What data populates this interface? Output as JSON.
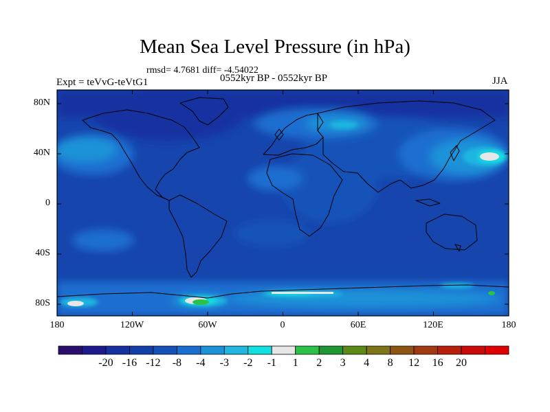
{
  "title": "Mean Sea Level Pressure (in hPa)",
  "stats_text": "rmsd= 4.7681 diff= -4.54022",
  "period_text": "0552kyr BP - 0552kyr BP",
  "experiment_text": "Expt = teVvG-teVtG1",
  "season_text": "JJA",
  "lat_labels": [
    "80N",
    "40N",
    "0",
    "40S",
    "80S"
  ],
  "lon_labels": [
    "180",
    "120W",
    "60W",
    "0",
    "60E",
    "120E",
    "180"
  ],
  "colorbar": {
    "labels": [
      "-20",
      "-16",
      "-12",
      "-8",
      "-4",
      "-3",
      "-2",
      "-1",
      "1",
      "2",
      "3",
      "4",
      "8",
      "12",
      "16",
      "20"
    ],
    "colors": [
      "#2b0f6e",
      "#1c1a8c",
      "#1631a0",
      "#123fa8",
      "#1552b8",
      "#1a6ed0",
      "#1c93d8",
      "#1fb6e0",
      "#12e0e0",
      "#e6e6e6",
      "#2cc24a",
      "#1e9632",
      "#5e8a18",
      "#7e7418",
      "#8e5414",
      "#a23a10",
      "#b8200c",
      "#cc0a0a",
      "#e00000"
    ]
  },
  "colors": {
    "ocean_base": "#1645ad",
    "land_base": "#1552b8",
    "arctic": "#1631a0",
    "light_blue": "#1a6ed0",
    "mid_blue": "#1c93d8",
    "cyan": "#1fb6e0",
    "bright_cyan": "#12e0e0",
    "near_zero": "#e6e6e6",
    "green": "#2cc24a",
    "dark_green": "#1e9632"
  }
}
